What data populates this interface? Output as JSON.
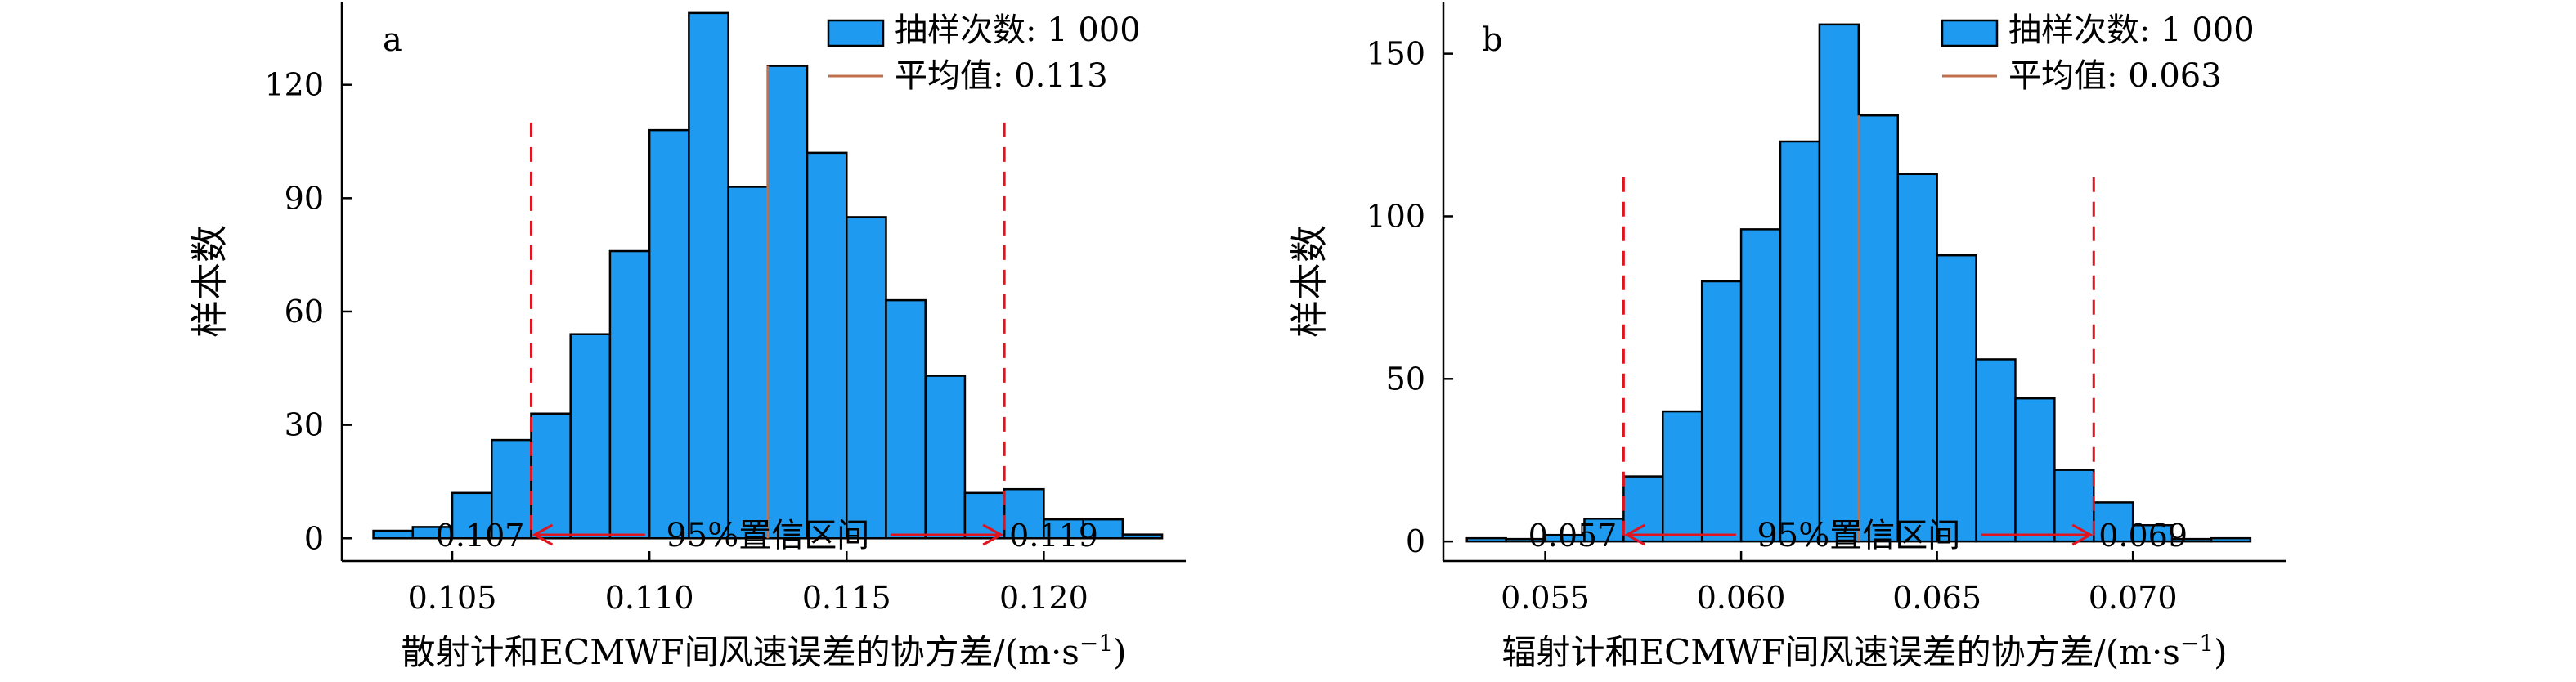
{
  "chart_data": [
    {
      "type": "bar",
      "panel_label": "a",
      "ylabel": "样本数",
      "xlabel": "散射计和ECMWF间风速误差的协方差/(m·s",
      "xlabel_unit_sup": "−1",
      "xlabel_close": ")",
      "xlim": [
        0.1022,
        0.1236
      ],
      "ylim": [
        -6,
        142
      ],
      "xticks": [
        0.105,
        0.11,
        0.115,
        0.12
      ],
      "xtick_labels": [
        "0.105",
        "0.110",
        "0.115",
        "0.120"
      ],
      "yticks": [
        0,
        30,
        60,
        90,
        120
      ],
      "ytick_labels": [
        "0",
        "30",
        "60",
        "90",
        "120"
      ],
      "bin_start": 0.103,
      "bin_width": 0.001,
      "values": [
        2,
        3,
        12,
        26,
        33,
        54,
        76,
        108,
        139,
        93,
        125,
        102,
        85,
        63,
        43,
        12,
        13,
        5,
        5,
        1
      ],
      "mean": 0.113,
      "ci": [
        0.107,
        0.119
      ],
      "ci_left_label": "0.107",
      "ci_right_label": "0.119",
      "ci_text": "95%置信区间",
      "ci_line_top": 110,
      "legend": {
        "bar_label": "抽样次数: 1 000",
        "line_label": "平均值: 0.113",
        "position": "top-right"
      },
      "colors": {
        "bar": "#1e9bf0",
        "mean": "#c0704c",
        "ci": "#e0141e"
      }
    },
    {
      "type": "bar",
      "panel_label": "b",
      "ylabel": "样本数",
      "xlabel": "辐射计和ECMWF间风速误差的协方差/(m·s",
      "xlabel_unit_sup": "−1",
      "xlabel_close": ")",
      "xlim": [
        0.0524,
        0.0739
      ],
      "ylim": [
        -6,
        166
      ],
      "xticks": [
        0.055,
        0.06,
        0.065,
        0.07
      ],
      "xtick_labels": [
        "0.055",
        "0.060",
        "0.065",
        "0.070"
      ],
      "yticks": [
        0,
        50,
        100,
        150
      ],
      "ytick_labels": [
        "0",
        "50",
        "100",
        "150"
      ],
      "bin_start": 0.053,
      "bin_width": 0.001,
      "values": [
        1,
        0,
        2,
        7,
        20,
        40,
        80,
        96,
        123,
        159,
        131,
        113,
        88,
        56,
        44,
        22,
        12,
        5,
        0,
        1
      ],
      "mean": 0.063,
      "ci": [
        0.057,
        0.069
      ],
      "ci_left_label": "0.057",
      "ci_right_label": "0.069",
      "ci_text": "95%置信区间",
      "ci_line_top": 112,
      "legend": {
        "bar_label": "抽样次数: 1 000",
        "line_label": "平均值: 0.063",
        "position": "top-right"
      },
      "colors": {
        "bar": "#1e9bf0",
        "mean": "#c0704c",
        "ci": "#e0141e"
      }
    }
  ]
}
